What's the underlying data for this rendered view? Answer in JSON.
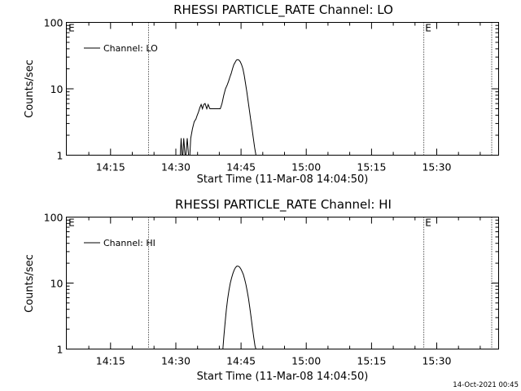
{
  "chart_data": [
    {
      "type": "line",
      "title": "RHESSI PARTICLE_RATE Channel: LO",
      "xlabel": "Start Time (11-Mar-08 14:04:50)",
      "ylabel": "Counts/sec",
      "x_unit": "minutes after 14:04:50",
      "yscale": "log",
      "ylim": [
        1,
        100
      ],
      "xlim": [
        0,
        99.4
      ],
      "x_tick_labels": [
        "14:15",
        "14:30",
        "14:45",
        "15:00",
        "15:15",
        "15:30"
      ],
      "x_ticks": [
        10.17,
        25.17,
        40.17,
        55.17,
        70.17,
        85.17
      ],
      "y_tick_labels": [
        "1",
        "10",
        "100"
      ],
      "y_ticks": [
        1,
        10,
        100
      ],
      "legend": "top-left",
      "markers": [
        {
          "label": "E",
          "x": 0.3
        },
        {
          "label": "E",
          "x": 82.3
        }
      ],
      "dotted_lines": [
        18.9,
        82.2,
        97.8
      ],
      "series": [
        {
          "name": "Channel: LO",
          "x": [
            26.2,
            26.4,
            26.6,
            26.8,
            27.0,
            27.3,
            27.5,
            27.8,
            28.1,
            28.4,
            28.6,
            29.0,
            29.4,
            29.8,
            30.1,
            30.4,
            30.7,
            31.0,
            31.3,
            31.6,
            31.9,
            32.3,
            32.6,
            33.0,
            33.3,
            33.7,
            34.0,
            34.4,
            34.7,
            35.0,
            35.4,
            35.8,
            36.2,
            36.6,
            37.0,
            37.3,
            37.6,
            37.9,
            38.2,
            38.5,
            38.8,
            39.1,
            39.4,
            39.7,
            40.0,
            40.3,
            40.6,
            40.9,
            41.2,
            41.5,
            41.8,
            42.1,
            42.4,
            42.7,
            43.0,
            43.3,
            43.6,
            43.9,
            44.2,
            44.5,
            44.8,
            45.1,
            45.4,
            45.7,
            46.0
          ],
          "y": [
            1.0,
            1.8,
            1.0,
            1.0,
            1.8,
            1.0,
            1.0,
            1.8,
            1.0,
            1.0,
            1.8,
            2.5,
            3.2,
            3.5,
            4.0,
            4.5,
            5.2,
            5.8,
            5.0,
            5.8,
            6.0,
            5.0,
            5.8,
            5.0,
            5.0,
            5.0,
            5.0,
            5.0,
            5.0,
            5.0,
            5.0,
            6.0,
            8.0,
            10.0,
            11.5,
            13.0,
            15.0,
            17.0,
            20.0,
            23.0,
            25.0,
            27.0,
            27.5,
            27.0,
            25.5,
            23.0,
            20.0,
            16.0,
            12.0,
            9.0,
            6.5,
            4.7,
            3.4,
            2.5,
            1.8,
            1.3,
            1.0,
            1.0,
            1.0,
            1.0,
            1.0,
            1.0,
            1.0,
            1.0,
            1.0
          ]
        }
      ]
    },
    {
      "type": "line",
      "title": "RHESSI PARTICLE_RATE Channel: HI",
      "xlabel": "Start Time (11-Mar-08 14:04:50)",
      "ylabel": "Counts/sec",
      "x_unit": "minutes after 14:04:50",
      "yscale": "log",
      "ylim": [
        1,
        100
      ],
      "xlim": [
        0,
        99.4
      ],
      "x_tick_labels": [
        "14:15",
        "14:30",
        "14:45",
        "15:00",
        "15:15",
        "15:30"
      ],
      "x_ticks": [
        10.17,
        25.17,
        40.17,
        55.17,
        70.17,
        85.17
      ],
      "y_tick_labels": [
        "1",
        "10",
        "100"
      ],
      "y_ticks": [
        1,
        10,
        100
      ],
      "legend": "top-left",
      "markers": [
        {
          "label": "E",
          "x": 0.3
        },
        {
          "label": "E",
          "x": 82.3
        }
      ],
      "dotted_lines": [
        18.9,
        82.2,
        97.8
      ],
      "series": [
        {
          "name": "Channel: HI",
          "x": [
            36.0,
            36.2,
            36.5,
            36.8,
            37.1,
            37.4,
            37.7,
            38.0,
            38.3,
            38.6,
            38.9,
            39.2,
            39.5,
            39.8,
            40.1,
            40.4,
            40.7,
            41.0,
            41.3,
            41.6,
            41.9,
            42.2,
            42.5,
            42.8,
            43.1,
            43.4,
            43.6
          ],
          "y": [
            1.0,
            1.5,
            2.5,
            4.0,
            5.8,
            7.8,
            10.0,
            12.0,
            14.0,
            15.8,
            17.2,
            18.0,
            18.0,
            17.6,
            16.5,
            15.0,
            13.5,
            11.5,
            9.5,
            7.5,
            5.8,
            4.2,
            3.0,
            2.1,
            1.5,
            1.1,
            1.0
          ]
        }
      ]
    }
  ],
  "footer": {
    "timestamp": "14-Oct-2021 00:45"
  }
}
